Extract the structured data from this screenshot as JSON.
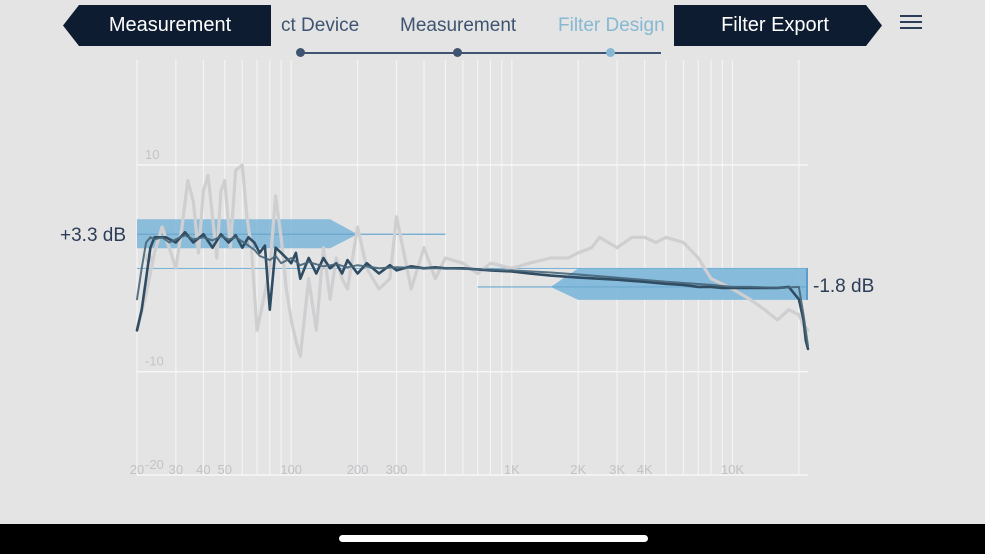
{
  "stepper": {
    "steps": [
      {
        "label": "ct Device"
      },
      {
        "label": "Measurement"
      },
      {
        "label": "Filter Design"
      }
    ]
  },
  "nav": {
    "back_label": "Measurement",
    "next_label": "Filter Export"
  },
  "colors": {
    "accent": "#86b8d2",
    "dark": "#0d1c30",
    "curve": "#2f4c62",
    "raw_curve": "#cfcfd2",
    "filter_fill": "#7bb6d9",
    "background": "#e4e4e4"
  },
  "gains": {
    "bass": "+3.3 dB",
    "treble": "-1.8 dB"
  },
  "chart_data": {
    "type": "line",
    "x_scale": "log",
    "xlim": [
      20,
      22000
    ],
    "ylim": [
      -20,
      10
    ],
    "y_ticks": [
      "10",
      "0",
      "-10",
      "-20"
    ],
    "x_ticks": [
      "20",
      "30",
      "40",
      "50",
      "100",
      "200",
      "300",
      "1K",
      "2K",
      "3K",
      "4K",
      "10K"
    ],
    "shelves": [
      {
        "type": "low-shelf",
        "gain_db": 3.3
      },
      {
        "type": "high-shelf",
        "gain_db": -1.8
      }
    ],
    "series": [
      {
        "role": "raw",
        "x": [
          20,
          22,
          24,
          26,
          28,
          30,
          32,
          34,
          36,
          38,
          40,
          42,
          44,
          46,
          48,
          50,
          53,
          56,
          60,
          63,
          66,
          70,
          75,
          80,
          85,
          90,
          95,
          100,
          105,
          110,
          120,
          130,
          140,
          150,
          160,
          170,
          180,
          200,
          220,
          250,
          280,
          300,
          350,
          400,
          450,
          500,
          600,
          700,
          800,
          1000,
          1200,
          1500,
          1800,
          2000,
          2300,
          2500,
          3000,
          3500,
          4000,
          4500,
          5000,
          6000,
          7000,
          8000,
          10000,
          12000,
          14000,
          16000,
          18000,
          20000,
          21000,
          22000
        ],
        "y": [
          -6,
          -2.5,
          1.5,
          4,
          2,
          0,
          4,
          8.5,
          6.5,
          1.5,
          7.5,
          9,
          5,
          1,
          7.5,
          8.5,
          2,
          9.5,
          10,
          5,
          2,
          -6,
          -3,
          0,
          7,
          3,
          -2,
          -5,
          -7,
          -8.5,
          -1,
          -6,
          2,
          -3,
          1,
          -1,
          -2,
          4,
          0,
          -2,
          -1,
          5,
          -2,
          2,
          -1,
          1,
          0.5,
          -0.5,
          0.5,
          0,
          0.5,
          1,
          1,
          1.5,
          2,
          3,
          2,
          3,
          3,
          2.5,
          3,
          2.5,
          1,
          -1,
          -2,
          -3,
          -4,
          -5,
          -4,
          -4.5,
          -5.5,
          -6
        ]
      },
      {
        "role": "corrected",
        "x": [
          20,
          21,
          22,
          23,
          24,
          25,
          27,
          30,
          33,
          36,
          40,
          44,
          48,
          52,
          56,
          60,
          64,
          68,
          72,
          76,
          80,
          85,
          90,
          95,
          100,
          105,
          110,
          120,
          130,
          140,
          150,
          160,
          170,
          180,
          200,
          220,
          250,
          280,
          300,
          350,
          400,
          450,
          500,
          600,
          700,
          800,
          1000,
          1200,
          1500,
          2000,
          3000,
          4000,
          5000,
          6000,
          7000,
          8000,
          9000,
          10000,
          12000,
          14000,
          16000,
          18000,
          20000,
          21000,
          21500,
          22000
        ],
        "y": [
          -6,
          -4,
          -1,
          2,
          3,
          3,
          3,
          2.5,
          3.5,
          2.5,
          3.3,
          2,
          3.3,
          2.5,
          3.2,
          2,
          3,
          2.5,
          1.5,
          2.2,
          -4,
          2,
          1.5,
          1,
          0.5,
          1.5,
          -1,
          1,
          -0.5,
          1,
          0,
          0.5,
          -0.5,
          0.8,
          -0.5,
          0.5,
          -0.5,
          0.3,
          -0.2,
          0.2,
          0,
          0.1,
          0,
          0,
          -0.1,
          -0.2,
          -0.3,
          -0.5,
          -0.7,
          -0.9,
          -1.1,
          -1.3,
          -1.5,
          -1.6,
          -1.8,
          -1.8,
          -1.9,
          -1.9,
          -1.9,
          -1.9,
          -1.9,
          -1.8,
          -3,
          -5,
          -7,
          -7.8
        ]
      },
      {
        "role": "filtered",
        "x": [
          20,
          21,
          22,
          23,
          24,
          26,
          28,
          30,
          33,
          36,
          40,
          44,
          48,
          52,
          56,
          60,
          64,
          68,
          72,
          76,
          80,
          85,
          90,
          100,
          110,
          120,
          140,
          160,
          180,
          200,
          250,
          300,
          400,
          500,
          700,
          1000,
          1500,
          2000,
          3000,
          5000,
          8000,
          10000,
          12000,
          16000,
          20000,
          21000,
          22000
        ],
        "y": [
          -3,
          0,
          2.5,
          3,
          2.8,
          3,
          2.5,
          2.8,
          3.2,
          2.8,
          3,
          2.7,
          3.1,
          2.8,
          3,
          2.6,
          2.2,
          1.8,
          1.2,
          1.0,
          0.8,
          1.2,
          0.5,
          1,
          0.3,
          0.6,
          0.2,
          0.4,
          0.1,
          0.3,
          0,
          0.1,
          0,
          0,
          -0.1,
          -0.2,
          -0.4,
          -0.6,
          -0.9,
          -1.3,
          -1.6,
          -1.8,
          -1.8,
          -1.9,
          -1.8,
          -4.5,
          -7.5
        ]
      }
    ]
  }
}
